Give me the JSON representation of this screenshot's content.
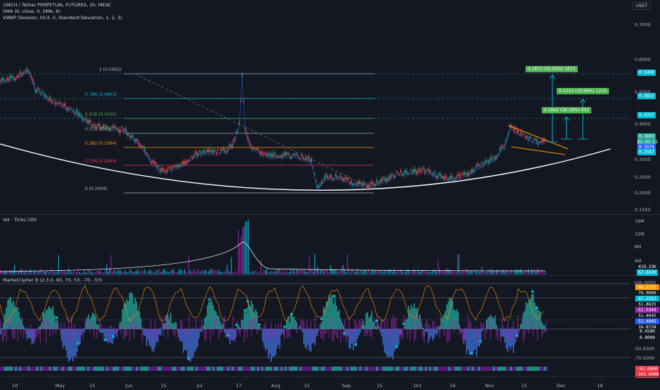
{
  "header": {
    "symbol_line": "1INCH / Tether PERPETUAL FUTURES, 2h, MEXC",
    "sma_line": "SMA (9, close, 0, SMA, 9)",
    "vwap_line": "VWAP (Session, hlc3, 0, Standard Deviation, 1, 2, 3)",
    "currency_button": "USDT"
  },
  "price_axis": [
    "0.7000",
    "0.6000",
    "0.5000",
    "0.4000",
    "0.3000",
    "0.2500",
    "0.2000",
    "0.1500"
  ],
  "price_boxes": [
    {
      "text": "0.5490",
      "color": "#00bcd4"
    },
    {
      "text": "0.4815",
      "color": "#00bcd4"
    },
    {
      "text": "0.4257",
      "color": "#00bcd4"
    },
    {
      "text": "0.3602",
      "color": "#26a69a"
    },
    {
      "text": "01:42:11",
      "color": "#26a69a"
    },
    {
      "text": "0.3574",
      "color": "#2962ff"
    },
    {
      "text": "0.3567",
      "color": "#00bcd4"
    }
  ],
  "fib_levels": [
    {
      "label": "1 (0.5565)",
      "color": "#b2b5be"
    },
    {
      "label": "0.786 (0.4803)",
      "color": "#00bcd4"
    },
    {
      "label": "0.618 (0.4305)",
      "color": "#4caf50"
    },
    {
      "label": "0.5 (0.3785)",
      "color": "#81c784"
    },
    {
      "label": "0.382 (0.3364)",
      "color": "#ff9800"
    },
    {
      "label": "0.236 (0.2844)",
      "color": "#f23645"
    },
    {
      "label": "0 (0.2004)",
      "color": "#b2b5be"
    }
  ],
  "targets": [
    {
      "text": "0.1872 (52.02%) 1872"
    },
    {
      "text": "0.1215 (33.66%) 1215"
    },
    {
      "text": "0.1662 (18.39%) 632"
    }
  ],
  "volume_pane": {
    "title": "Vol · Ticks (30)",
    "axis": [
      "16M",
      "12M",
      "8M",
      "4M"
    ],
    "boxes": [
      {
        "text": "419.33K",
        "color": "#131722"
      },
      {
        "text": "67.843K",
        "color": "#00bcd4"
      }
    ]
  },
  "mc_pane": {
    "title": "MarketCipher B (2.3.0, 60, 70, 53, -70, -53)",
    "axis": [
      "100.0000",
      "-50.0000",
      "-70.0000"
    ],
    "boxes": [
      {
        "text": "86.2137",
        "color": "#ff9800"
      },
      {
        "text": "70.0000",
        "color": "#131722"
      },
      {
        "text": "67.2582",
        "color": "#00bcd4"
      },
      {
        "text": "51.8625",
        "color": "#131722"
      },
      {
        "text": "51.5349",
        "color": "#9c27b0"
      },
      {
        "text": "51.4045",
        "color": "#131722"
      },
      {
        "text": "51.4045",
        "color": "#2962ff"
      },
      {
        "text": "16.8734",
        "color": "#131722"
      },
      {
        "text": "0.4580",
        "color": "#131722"
      },
      {
        "text": "0.0000",
        "color": "#131722"
      },
      {
        "text": "-93.0000",
        "color": "#f23645"
      },
      {
        "text": "-101.0000",
        "color": "#f23645"
      }
    ]
  },
  "time_axis": [
    "10",
    "May",
    "15",
    "Jun",
    "15",
    "Jul",
    "17",
    "Aug",
    "15",
    "Sep",
    "15",
    "Oct",
    "16",
    "Nov",
    "15",
    "Dec",
    "18"
  ]
}
